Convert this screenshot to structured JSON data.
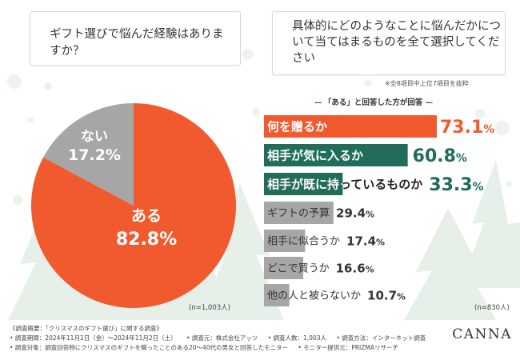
{
  "colors": {
    "accent": "#f15a2e",
    "teal": "#216c5b",
    "gray": "#a6a6a6",
    "tree": "#e6efe8",
    "snow": "#eef3f0"
  },
  "question1": {
    "text": "ギフト選びで悩んだ経験はありますか？"
  },
  "question2": {
    "text": "具体的にどのようなことに悩んだかについて当てはまるものを全て選択してください"
  },
  "note_top": "※全8項目中上位7項目を抜粋",
  "subtitle": "「ある」と回答した方が回答",
  "subtitle_dash": "—",
  "n_left": "(n=1,003人)",
  "n_right": "(n=830人)",
  "chart_data": [
    {
      "type": "pie",
      "title": "ギフト選びで悩んだ経験はありますか？",
      "slices": [
        {
          "label": "ある",
          "value": 82.8,
          "display": "82.8%",
          "color": "#f15a2e"
        },
        {
          "label": "ない",
          "value": 17.2,
          "display": "17.2%",
          "color": "#a6a6a6"
        }
      ],
      "n": "(n=1,003人)"
    },
    {
      "type": "bar",
      "orientation": "horizontal",
      "title": "具体的にどのようなことに悩んだかについて当てはまるものを全て選択してください",
      "unit": "%",
      "xlim": [
        0,
        80
      ],
      "categories": [
        "何を贈るか",
        "相手が気に入るか",
        "相手が既に持っているものか",
        "ギフトの予算",
        "相手に似合うか",
        "どこで買うか",
        "他の人と被らないか"
      ],
      "values": [
        73.1,
        60.8,
        33.3,
        29.4,
        17.4,
        16.6,
        10.7
      ],
      "display": [
        "73.1%",
        "60.8%",
        "33.3%",
        "29.4%",
        "17.4%",
        "16.6%",
        "10.7%"
      ],
      "n": "(n=830人)"
    }
  ],
  "footer": {
    "line1": "《調査概要：「クリスマスのギフト選び」に関する調査》",
    "period": "• 調査期間：2024年11月1日（金）〜2024年11月2日（土）",
    "source": "• 調査元：株式会社アッツ",
    "count": "• 調査人数：1,003人",
    "method": "• 調査方法：インターネット調査",
    "target": "• 調査対象：調査回答時にクリスマスのギフトを贈ったことのある20〜40代の男女と回答したモニター",
    "provider": "• モニター提供元：PRIZMAリサーチ"
  },
  "logo": "CANNA"
}
